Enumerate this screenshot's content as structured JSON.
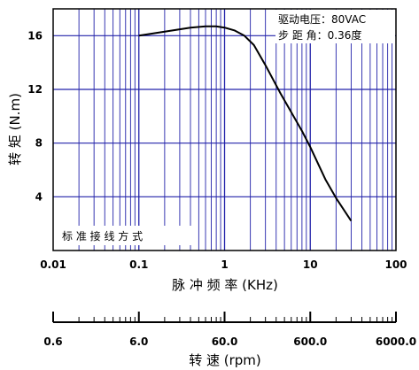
{
  "chart_data": {
    "type": "line",
    "title": "",
    "xlabel": "脉 冲 频 率   (KHz)",
    "ylabel": "转 矩   (N.m)",
    "xscale": "log",
    "xlim": [
      0.01,
      100
    ],
    "ylim": [
      0,
      18
    ],
    "grid": true,
    "x_tick_labels": [
      "0.01",
      "0.1",
      "1",
      "10",
      "100"
    ],
    "y_tick_labels": [
      "4",
      "8",
      "12",
      "16"
    ],
    "y_ticks": [
      4,
      8,
      12,
      16
    ],
    "series": [
      {
        "color": "#000000",
        "points": [
          [
            0.1,
            16.0
          ],
          [
            0.2,
            16.3
          ],
          [
            0.4,
            16.6
          ],
          [
            0.6,
            16.7
          ],
          [
            0.8,
            16.7
          ],
          [
            1.0,
            16.6
          ],
          [
            1.3,
            16.4
          ],
          [
            1.7,
            16.0
          ],
          [
            2.2,
            15.3
          ],
          [
            3.0,
            13.8
          ],
          [
            4.5,
            11.7
          ],
          [
            6.0,
            10.3
          ],
          [
            8.0,
            8.9
          ],
          [
            10.0,
            7.7
          ],
          [
            15.0,
            5.3
          ],
          [
            20.0,
            3.9
          ],
          [
            30.0,
            2.2
          ]
        ]
      }
    ],
    "annotations": {
      "drive_voltage": "驱动电压：80VAC",
      "step_angle": "步 距 角：0.36度",
      "wiring": "标 准 接 线 方 式"
    },
    "secondary_axis": {
      "label": "转  速   (rpm)",
      "tick_labels": [
        "0.6",
        "6.0",
        "60.0",
        "600.0",
        "6000.0"
      ]
    },
    "colors": {
      "grid": "#2222aa",
      "curve": "#000000",
      "frame": "#000000"
    }
  }
}
